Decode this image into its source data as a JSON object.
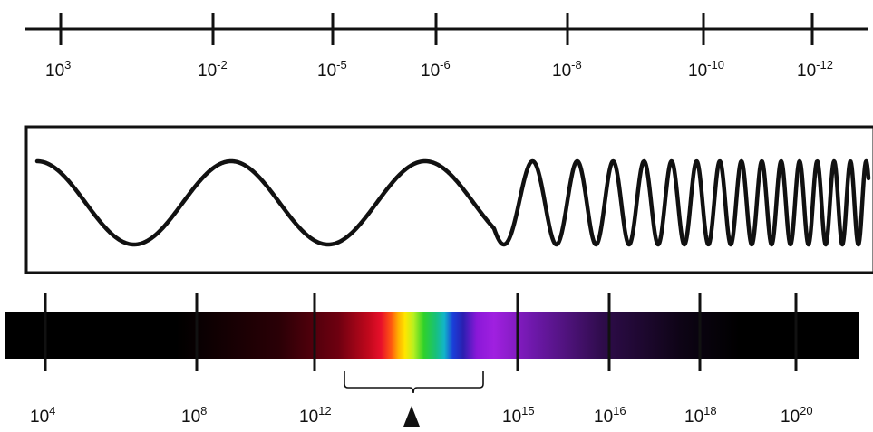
{
  "wavelength_scale": {
    "ticks": [
      {
        "base": "10",
        "exponent": "3"
      },
      {
        "base": "10",
        "exponent": "-2"
      },
      {
        "base": "10",
        "exponent": "-5"
      },
      {
        "base": "10",
        "exponent": "-6"
      },
      {
        "base": "10",
        "exponent": "-8"
      },
      {
        "base": "10",
        "exponent": "-10"
      },
      {
        "base": "10",
        "exponent": "-12"
      }
    ]
  },
  "frequency_scale": {
    "ticks": [
      {
        "base": "10",
        "exponent": "4"
      },
      {
        "base": "10",
        "exponent": "8"
      },
      {
        "base": "10",
        "exponent": "12"
      },
      {
        "base": "10",
        "exponent": "15"
      },
      {
        "base": "10",
        "exponent": "16"
      },
      {
        "base": "10",
        "exponent": "18"
      },
      {
        "base": "10",
        "exponent": "20"
      }
    ]
  },
  "colors": {
    "line": "#111111",
    "background": "#ffffff",
    "spectrum_base": "#000000",
    "spectrum_red": "#e8102a",
    "spectrum_orange": "#ff8a00",
    "spectrum_yellow": "#ffe600",
    "spectrum_green": "#2fd12a",
    "spectrum_cyan": "#12b5c9",
    "spectrum_blue": "#1a3fd9",
    "spectrum_violet": "#a020e0"
  },
  "icons": {
    "visible_range_marker": "upward-triangle"
  }
}
